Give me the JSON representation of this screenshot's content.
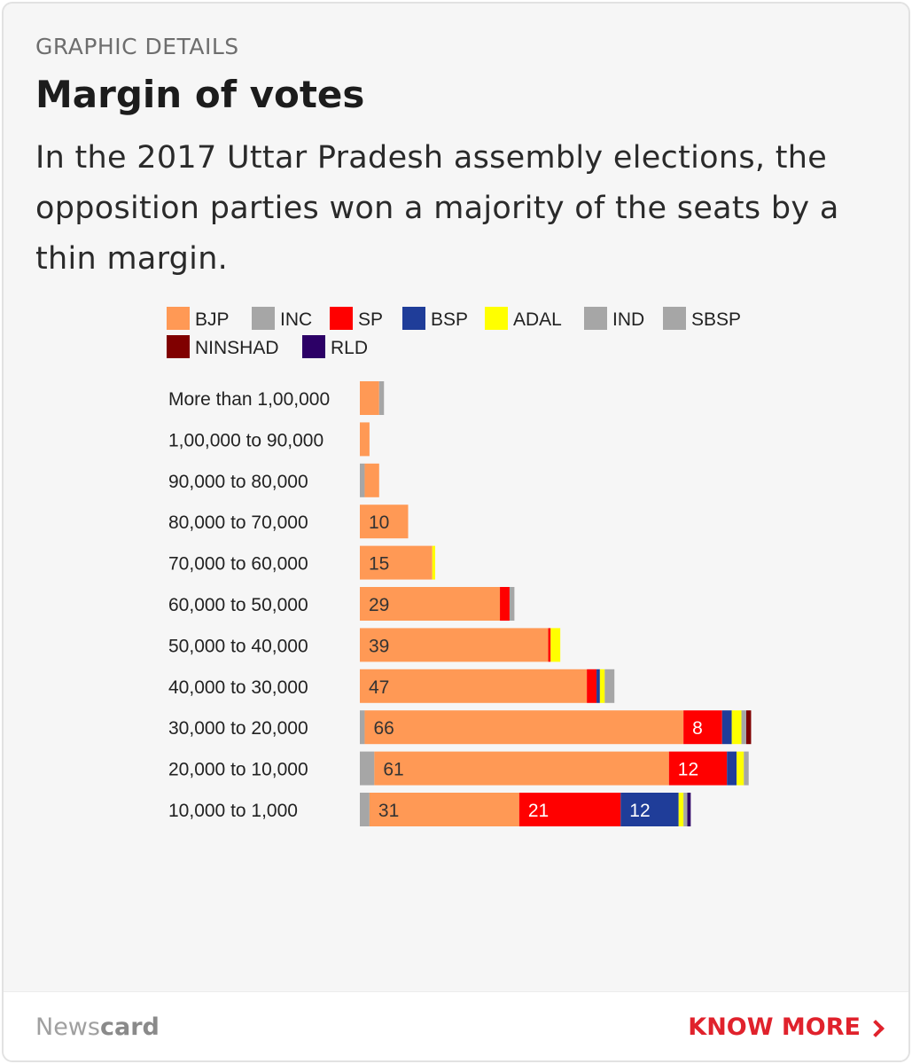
{
  "header": {
    "section_label": "GRAPHIC DETAILS",
    "title": "Margin of votes",
    "subtitle": "In the 2017 Uttar Pradesh assembly elections, the opposition parties won a majority of the seats by a thin margin."
  },
  "footer": {
    "brand_light": "News",
    "brand_bold": "card",
    "cta_label": "KNOW MORE"
  },
  "chart_data": {
    "type": "bar",
    "orientation": "horizontal",
    "stacked": true,
    "legend_position": "top",
    "categories": [
      "More than 1,00,000",
      "1,00,000 to 90,000",
      "90,000 to 80,000",
      "80,000 to 70,000",
      "70,000 to 60,000",
      "60,000 to 50,000",
      "50,000 to 40,000",
      "40,000 to 30,000",
      "30,000 to 20,000",
      "20,000 to 10,000",
      "10,000 to 1,000"
    ],
    "series": [
      {
        "name": "INC",
        "color": "#a6a6a6",
        "values": [
          0,
          0,
          1,
          0,
          0,
          0,
          0,
          0,
          1,
          3,
          2
        ]
      },
      {
        "name": "BJP",
        "color": "#ff9955",
        "values": [
          4,
          2,
          3,
          10,
          15,
          29,
          39,
          47,
          66,
          61,
          31
        ]
      },
      {
        "name": "SP",
        "color": "#ff0000",
        "values": [
          0,
          0,
          0,
          0,
          0,
          2,
          0.5,
          2,
          8,
          12,
          21
        ]
      },
      {
        "name": "BSP",
        "color": "#1f3d99",
        "values": [
          0,
          0,
          0,
          0,
          0,
          0,
          0,
          0.7,
          2,
          2,
          12
        ]
      },
      {
        "name": "ADAL",
        "color": "#ffff00",
        "values": [
          0,
          0,
          0,
          0,
          0.6,
          0,
          2,
          1,
          2,
          1.5,
          1
        ]
      },
      {
        "name": "IND",
        "color": "#a6a6a6",
        "values": [
          1,
          0,
          0,
          0,
          0,
          1,
          0,
          2,
          0,
          0,
          0.8
        ]
      },
      {
        "name": "SBSP",
        "color": "#a6a6a6",
        "values": [
          0,
          0,
          0,
          0,
          0,
          0,
          0,
          0,
          1,
          1,
          0
        ]
      },
      {
        "name": "NINSHAD",
        "color": "#800000",
        "values": [
          0,
          0,
          0,
          0,
          0,
          0,
          0,
          0,
          1,
          0,
          0
        ]
      },
      {
        "name": "RLD",
        "color": "#2c0066",
        "values": [
          0,
          0,
          0,
          0,
          0,
          0,
          0,
          0,
          0,
          0,
          0.7
        ]
      }
    ],
    "data_labels": {
      "BJP": [
        "",
        "",
        "",
        "10",
        "15",
        "29",
        "39",
        "47",
        "66",
        "61",
        "31"
      ],
      "SP": [
        "",
        "",
        "",
        "",
        "",
        "",
        "",
        "",
        "8",
        "12",
        "21"
      ],
      "BSP": [
        "",
        "",
        "",
        "",
        "",
        "",
        "",
        "",
        "",
        "",
        "12"
      ]
    },
    "legend": [
      "BJP",
      "INC",
      "SP",
      "BSP",
      "ADAL",
      "IND",
      "SBSP",
      "NINSHAD",
      "RLD"
    ],
    "legend_colors": {
      "BJP": "#ff9955",
      "INC": "#a6a6a6",
      "SP": "#ff0000",
      "BSP": "#1f3d99",
      "ADAL": "#ffff00",
      "IND": "#a6a6a6",
      "SBSP": "#a6a6a6",
      "NINSHAD": "#800000",
      "RLD": "#2c0066"
    },
    "xlim": [
      0,
      80
    ],
    "grid": false
  }
}
